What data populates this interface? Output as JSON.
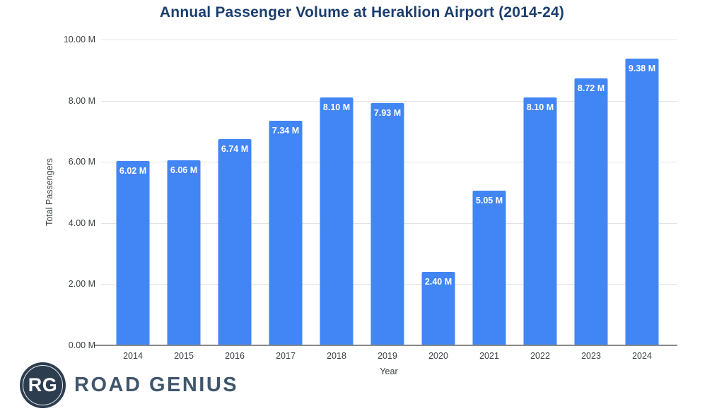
{
  "title": "Annual Passenger Volume at Heraklion Airport (2014-24)",
  "chart_data": {
    "type": "bar",
    "title": "Annual Passenger Volume at Heraklion Airport (2014-24)",
    "categories": [
      "2014",
      "2015",
      "2016",
      "2017",
      "2018",
      "2019",
      "2020",
      "2021",
      "2022",
      "2023",
      "2024"
    ],
    "values": [
      6.02,
      6.06,
      6.74,
      7.34,
      8.1,
      7.93,
      2.4,
      5.05,
      8.1,
      8.72,
      9.38
    ],
    "bar_labels": [
      "6.02 M",
      "6.06 M",
      "6.74 M",
      "7.34 M",
      "8.10 M",
      "7.93 M",
      "2.40 M",
      "5.05 M",
      "8.10 M",
      "8.72 M",
      "9.38 M"
    ],
    "xlabel": "Year",
    "ylabel": "Total Passengers",
    "ylim": [
      0,
      10
    ],
    "ytick_step": 2,
    "ytick_labels": [
      "0.00 M",
      "2.00 M",
      "4.00 M",
      "6.00 M",
      "8.00 M",
      "10.00 M"
    ],
    "grid": true,
    "legend": "none"
  },
  "colors": {
    "title": "#1b3e6f",
    "bar": "#4285f4",
    "bar_label": "#ffffff",
    "gridline": "#e3e3e3",
    "baseline": "#8a8a8a",
    "tick_label": "#3c4043",
    "logo_circle": "#2c3d4f",
    "logo_text": "#41566b"
  },
  "branding": {
    "logo_monogram": "RG",
    "logo_text": "ROAD GENIUS"
  }
}
